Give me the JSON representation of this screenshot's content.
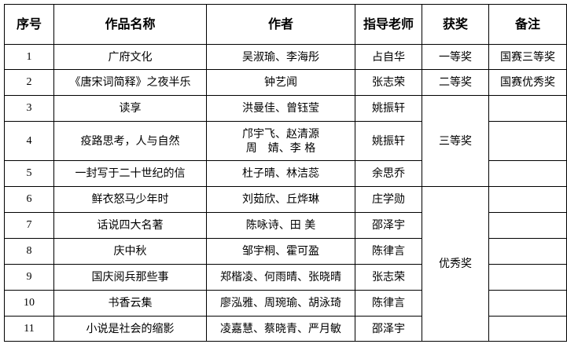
{
  "table": {
    "headers": [
      "序号",
      "作品名称",
      "作者",
      "指导老师",
      "获奖",
      "备注"
    ],
    "rows": [
      {
        "no": "1",
        "title": "广府文化",
        "authors": [
          "吴淑瑜、李海彤"
        ],
        "teacher": "占自华",
        "award": "一等奖",
        "note": "国赛三等奖"
      },
      {
        "no": "2",
        "title": "《唐宋词简释》之夜半乐",
        "authors": [
          "钟艺闻"
        ],
        "teacher": "张志荣",
        "award": "二等奖",
        "note": "国赛优秀奖"
      },
      {
        "no": "3",
        "title": "读享",
        "authors": [
          "洪曼佳、曾钰莹"
        ],
        "teacher": "姚振轩",
        "award": "三等奖",
        "note": ""
      },
      {
        "no": "4",
        "title": "疫路思考，人与自然",
        "authors": [
          "邝宇飞、赵清源",
          "周　婧、李 格"
        ],
        "teacher": "姚振轩",
        "award": "三等奖",
        "note": ""
      },
      {
        "no": "5",
        "title": "一封写于二十世纪的信",
        "authors": [
          "杜子晴、林洁蕊"
        ],
        "teacher": "余思乔",
        "award": "三等奖",
        "note": ""
      },
      {
        "no": "6",
        "title": "鲜衣怒马少年时",
        "authors": [
          "刘茹欣、丘烨琳"
        ],
        "teacher": "庄学勋",
        "award": "优秀奖",
        "note": ""
      },
      {
        "no": "7",
        "title": "话说四大名著",
        "authors": [
          "陈咏诗、田 美"
        ],
        "teacher": "邵泽宇",
        "award": "优秀奖",
        "note": ""
      },
      {
        "no": "8",
        "title": "庆中秋",
        "authors": [
          "邹宇桐、霍可盈"
        ],
        "teacher": "陈律言",
        "award": "优秀奖",
        "note": ""
      },
      {
        "no": "9",
        "title": "国庆阅兵那些事",
        "authors": [
          "郑楷凌、何雨晴、张晓晴"
        ],
        "teacher": "张志荣",
        "award": "优秀奖",
        "note": ""
      },
      {
        "no": "10",
        "title": "书香云集",
        "authors": [
          "廖泓雅、周琬瑜、胡泳琦"
        ],
        "teacher": "陈律言",
        "award": "优秀奖",
        "note": ""
      },
      {
        "no": "11",
        "title": "小说是社会的缩影",
        "authors": [
          "凌嘉慧、蔡晓青、严月敏"
        ],
        "teacher": "邵泽宇",
        "award": "优秀奖",
        "note": ""
      }
    ]
  }
}
